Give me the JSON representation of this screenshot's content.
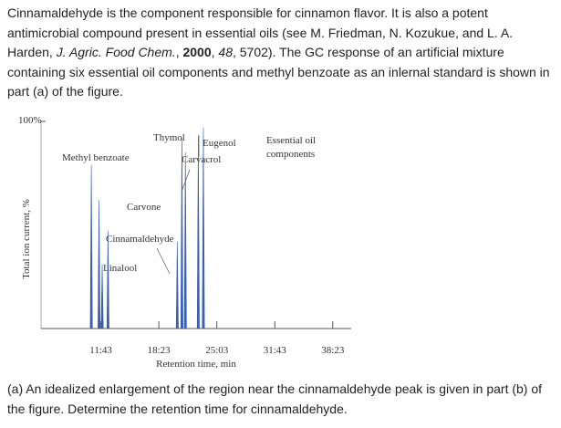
{
  "intro": [
    "Cinnamaldehyde is the component responsible for cinnamon flavor. It is also a potent antimicrobial compound present in essential oils (see M. Friedman, N. Kozukue, and L. A. Harden, ",
    "J. Agric. Food Chem.",
    ", ",
    "2000",
    ", ",
    "48",
    ", 5702). The GC response of an artificial mixture containing six essential oil components and methyl benzoate as an inlernal standard is shown in part (a) of the figure."
  ],
  "figure": {
    "y_label": "Total ion current, %",
    "x_label": "Retention time, min",
    "ylim": [
      0,
      100
    ],
    "yticks": [
      {
        "value": 100,
        "label": "100%"
      }
    ],
    "xlim": [
      290,
      2430
    ],
    "xticks": [
      {
        "value": 703,
        "label": "11:43"
      },
      {
        "value": 1103,
        "label": "18:23"
      },
      {
        "value": 1503,
        "label": "25:03"
      },
      {
        "value": 1903,
        "label": "31:43"
      },
      {
        "value": 2303,
        "label": "38:23"
      }
    ],
    "peak_labels": [
      "Methyl benzoate",
      "Thymol",
      "Eugenol",
      "Carvacrol",
      "Essential oil",
      "components",
      "Carvone",
      "Cinnamaldehyde",
      "Linalool"
    ],
    "color": "#3a5fb0",
    "peaks": [
      {
        "time": 637,
        "height": 79
      },
      {
        "time": 690,
        "height": 62
      },
      {
        "time": 712,
        "height": 31
      },
      {
        "time": 752,
        "height": 47
      },
      {
        "time": 1230,
        "height": 42
      },
      {
        "time": 1262,
        "height": 92
      },
      {
        "time": 1286,
        "height": 85
      },
      {
        "time": 1375,
        "height": 93
      },
      {
        "time": 1410,
        "height": 97
      }
    ]
  },
  "question": "(a) An idealized enlargement of the region near the cinnamaldehyde peak is given in part (b) of the figure. Determine the retention time for cinnamaldehyde."
}
